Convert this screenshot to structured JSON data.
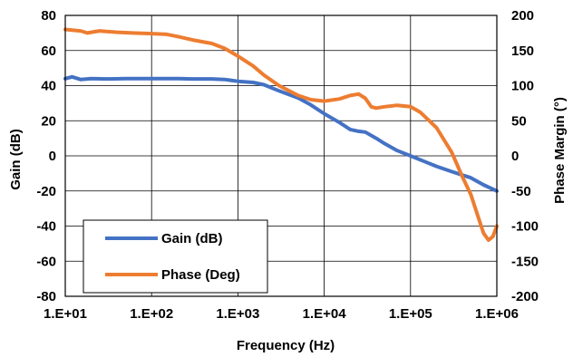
{
  "chart_data": {
    "type": "line",
    "xlabel": "Frequency (Hz)",
    "ylabel": "Gain (dB)",
    "y2label": "Phase Margin (°)",
    "x_scale": "log",
    "xlim": [
      10,
      1000000
    ],
    "ylim": [
      -80,
      80
    ],
    "y2lim": [
      -200,
      200
    ],
    "grid": true,
    "legend_position": "bottom-left",
    "x_ticks": [
      "1.E+01",
      "1.E+02",
      "1.E+03",
      "1.E+04",
      "1.E+05",
      "1.E+06"
    ],
    "y_ticks": [
      "80",
      "60",
      "40",
      "20",
      "0",
      "-20",
      "-40",
      "-60",
      "-80"
    ],
    "y2_ticks": [
      "200",
      "150",
      "100",
      "50",
      "0",
      "-50",
      "-100",
      "-150",
      "-200"
    ],
    "series": [
      {
        "name": "Gain (dB)",
        "axis": "left",
        "color": "#4472C4",
        "points": [
          [
            10,
            44
          ],
          [
            12,
            45
          ],
          [
            15,
            43.5
          ],
          [
            20,
            44
          ],
          [
            30,
            43.8
          ],
          [
            50,
            44
          ],
          [
            100,
            44
          ],
          [
            200,
            44
          ],
          [
            300,
            43.8
          ],
          [
            500,
            43.8
          ],
          [
            700,
            43.5
          ],
          [
            1000,
            42.5
          ],
          [
            1500,
            41.8
          ],
          [
            2000,
            40.5
          ],
          [
            3000,
            37
          ],
          [
            5000,
            33
          ],
          [
            7000,
            29
          ],
          [
            10000,
            24
          ],
          [
            15000,
            19
          ],
          [
            20000,
            15
          ],
          [
            25000,
            14
          ],
          [
            30000,
            13.5
          ],
          [
            40000,
            10
          ],
          [
            50000,
            7
          ],
          [
            70000,
            3
          ],
          [
            100000,
            0
          ],
          [
            150000,
            -3.5
          ],
          [
            200000,
            -6
          ],
          [
            300000,
            -9
          ],
          [
            500000,
            -12.5
          ],
          [
            700000,
            -16.5
          ],
          [
            1000000,
            -20
          ]
        ]
      },
      {
        "name": "Phase (Deg)",
        "axis": "right",
        "color": "#ED7D31",
        "points": [
          [
            10,
            180
          ],
          [
            12,
            179
          ],
          [
            15,
            178
          ],
          [
            18,
            175
          ],
          [
            20,
            176
          ],
          [
            25,
            178
          ],
          [
            30,
            177
          ],
          [
            40,
            176
          ],
          [
            60,
            175
          ],
          [
            100,
            174
          ],
          [
            150,
            173
          ],
          [
            200,
            170
          ],
          [
            300,
            165
          ],
          [
            500,
            160
          ],
          [
            700,
            153
          ],
          [
            1000,
            142
          ],
          [
            1500,
            128
          ],
          [
            2000,
            115
          ],
          [
            3000,
            100
          ],
          [
            5000,
            86
          ],
          [
            7000,
            80
          ],
          [
            10000,
            78
          ],
          [
            15000,
            81
          ],
          [
            20000,
            86
          ],
          [
            25000,
            88
          ],
          [
            30000,
            82
          ],
          [
            35000,
            70
          ],
          [
            40000,
            68
          ],
          [
            50000,
            70
          ],
          [
            70000,
            72
          ],
          [
            100000,
            70
          ],
          [
            130000,
            62
          ],
          [
            200000,
            40
          ],
          [
            300000,
            5
          ],
          [
            400000,
            -30
          ],
          [
            500000,
            -55
          ],
          [
            600000,
            -85
          ],
          [
            700000,
            -110
          ],
          [
            800000,
            -120
          ],
          [
            900000,
            -115
          ],
          [
            1000000,
            -100
          ]
        ]
      }
    ]
  }
}
